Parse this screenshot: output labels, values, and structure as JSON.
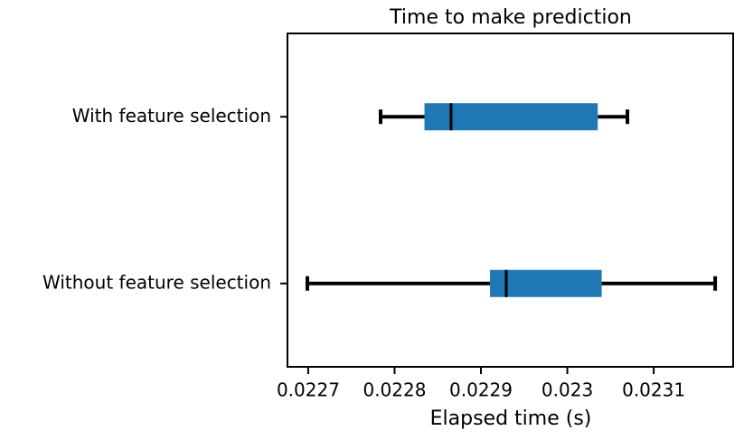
{
  "chart_data": {
    "type": "boxplot",
    "title": "Time to make prediction",
    "x_label": "Elapsed time (s)",
    "categories": [
      "With feature selection",
      "Without feature selection"
    ],
    "boxes": [
      {
        "low": 0.0227838,
        "q1": 0.0228346,
        "median": 0.0228654,
        "q3": 0.0230352,
        "high": 0.0230696
      },
      {
        "low": 0.022699,
        "q1": 0.0229105,
        "median": 0.0229293,
        "q3": 0.0230398,
        "high": 0.0231712
      }
    ],
    "color": "#1f77b4",
    "xlim": [
      0.022676,
      0.023192
    ],
    "xticks": [
      0.0227,
      0.0228,
      0.0229,
      0.023,
      0.0231
    ]
  }
}
